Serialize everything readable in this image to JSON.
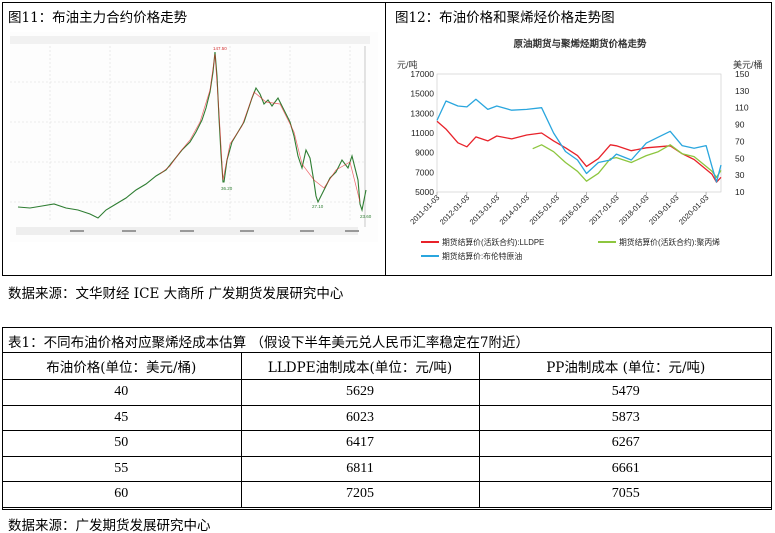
{
  "figures": {
    "fig11_title": "图11：布油主力合约价格走势",
    "fig12_title": "图12：布油价格和聚烯烃价格走势图",
    "source": "数据来源：文华财经    ICE    大商所  广发期货发展研究中心"
  },
  "fig11": {
    "price_labels": [
      "147.50",
      "36.20",
      "27.10",
      "23.60"
    ]
  },
  "chart_data": {
    "type": "line",
    "title": "原油期货与聚烯烃期货价格走势",
    "left_unit": "元/吨",
    "right_unit": "美元/桶",
    "left_ticks": [
      "17000",
      "15000",
      "13000",
      "11000",
      "9000",
      "7000",
      "5000"
    ],
    "right_ticks": [
      "150",
      "130",
      "110",
      "90",
      "70",
      "50",
      "30",
      "10"
    ],
    "ylim_left": [
      5000,
      17000
    ],
    "ylim_right": [
      10,
      150
    ],
    "x_ticks": [
      "2011-01-03",
      "2012-01-03",
      "2013-01-03",
      "2014-01-03",
      "2015-01-03",
      "2016-01-03",
      "2017-01-03",
      "2018-01-03",
      "2019-01-03",
      "2020-01-03"
    ],
    "series": [
      {
        "name": "期货结算价(活跃合约):LLDPE",
        "axis": "left",
        "color": "#e8222a",
        "x": [
          2011.0,
          2011.3,
          2011.7,
          2012.0,
          2012.3,
          2012.7,
          2013.0,
          2013.5,
          2014.0,
          2014.5,
          2014.9,
          2015.3,
          2015.7,
          2016.0,
          2016.4,
          2016.8,
          2017.0,
          2017.5,
          2018.0,
          2018.4,
          2018.8,
          2019.2,
          2019.6,
          2020.0,
          2020.2,
          2020.35,
          2020.5
        ],
        "values": [
          12200,
          11400,
          10000,
          9600,
          10600,
          10200,
          10700,
          10400,
          10800,
          11000,
          10200,
          9500,
          8700,
          7600,
          8400,
          9800,
          9700,
          9200,
          9500,
          9600,
          9700,
          8900,
          8300,
          7300,
          6800,
          6000,
          6500
        ]
      },
      {
        "name": "期货结算价(活跃合约):聚丙烯",
        "axis": "left",
        "color": "#8dc63f",
        "x": [
          2014.2,
          2014.5,
          2014.9,
          2015.3,
          2015.7,
          2016.0,
          2016.4,
          2016.8,
          2017.0,
          2017.5,
          2018.0,
          2018.4,
          2018.8,
          2019.2,
          2019.6,
          2020.0,
          2020.2,
          2020.35,
          2020.5
        ],
        "values": [
          9400,
          9800,
          9100,
          8000,
          7100,
          6100,
          6900,
          8400,
          8500,
          8000,
          8700,
          9100,
          9800,
          8900,
          8600,
          7600,
          7100,
          6500,
          7200
        ]
      },
      {
        "name": "期货结算价:布伦特原油",
        "axis": "right",
        "color": "#2aa6de",
        "x": [
          2011.0,
          2011.3,
          2011.7,
          2012.0,
          2012.3,
          2012.7,
          2013.0,
          2013.5,
          2014.0,
          2014.5,
          2014.9,
          2015.3,
          2015.7,
          2016.0,
          2016.4,
          2016.8,
          2017.0,
          2017.5,
          2018.0,
          2018.4,
          2018.8,
          2019.2,
          2019.6,
          2020.0,
          2020.2,
          2020.35,
          2020.5
        ],
        "values": [
          95,
          118,
          112,
          111,
          120,
          108,
          112,
          107,
          108,
          110,
          80,
          58,
          48,
          32,
          45,
          48,
          55,
          48,
          68,
          75,
          82,
          65,
          62,
          65,
          40,
          22,
          42
        ]
      }
    ]
  },
  "table": {
    "title": "表1：不同布油价格对应聚烯烃成本估算 （假设下半年美元兑人民币汇率稳定在7附近）",
    "headers": [
      "布油价格(单位：美元/桶)",
      "LLDPE油制成本(单位：元/吨)",
      "PP油制成本 (单位：元/吨)"
    ],
    "rows": [
      [
        "40",
        "5629",
        "5479"
      ],
      [
        "45",
        "6023",
        "5873"
      ],
      [
        "50",
        "6417",
        "6267"
      ],
      [
        "55",
        "6811",
        "6661"
      ],
      [
        "60",
        "7205",
        "7055"
      ]
    ],
    "source": "数据来源：广发期货发展研究中心"
  }
}
